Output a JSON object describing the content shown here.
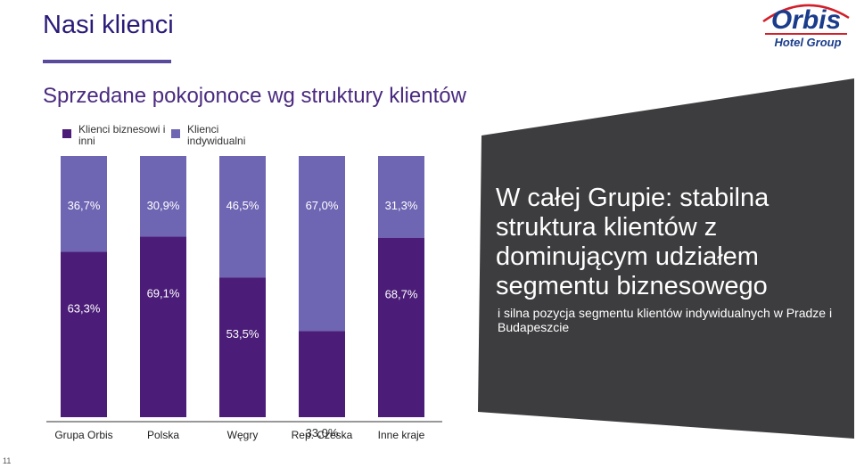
{
  "header": {
    "title": "Nasi klienci",
    "subtitle": "Sprzedane pokojonoce wg struktury klientów"
  },
  "logo": {
    "brand": "Orbis",
    "tagline": "Hotel Group"
  },
  "colors": {
    "business": "#4b1d78",
    "individual": "#6e65b3",
    "panel": "#3d3d3f",
    "title": "#2a1a78",
    "logo_blue": "#1a3c8c",
    "logo_red": "#d21f2a"
  },
  "legend": [
    {
      "label": "Klienci biznesowi i inni",
      "color": "#4b1d78"
    },
    {
      "label": "Klienci indywidualni",
      "color": "#6e65b3"
    }
  ],
  "chart_data": {
    "type": "bar",
    "stacked": true,
    "categories": [
      "Grupa Orbis",
      "Polska",
      "Węgry",
      "Rep. Czeska",
      "Inne kraje"
    ],
    "series": [
      {
        "name": "Klienci biznesowi i inni",
        "values": [
          63.3,
          69.1,
          53.5,
          33.0,
          68.7
        ],
        "labels": [
          "63,3%",
          "69,1%",
          "53,5%",
          "33,0%",
          "68,7%"
        ],
        "color": "#4b1d78"
      },
      {
        "name": "Klienci indywidualni",
        "values": [
          36.7,
          30.9,
          46.5,
          67.0,
          31.3
        ],
        "labels": [
          "36,7%",
          "30,9%",
          "46,5%",
          "67,0%",
          "31,3%"
        ],
        "color": "#6e65b3"
      }
    ],
    "ylim": [
      0,
      100
    ],
    "grid": false,
    "legend_position": "top-left"
  },
  "panel": {
    "heading": "W całej Grupie: stabilna struktura klientów z dominującym udziałem segmentu biznesowego",
    "note": "i silna pozycja segmentu klientów indywidualnych w Pradze i Budapeszcie"
  },
  "page_number": "11"
}
